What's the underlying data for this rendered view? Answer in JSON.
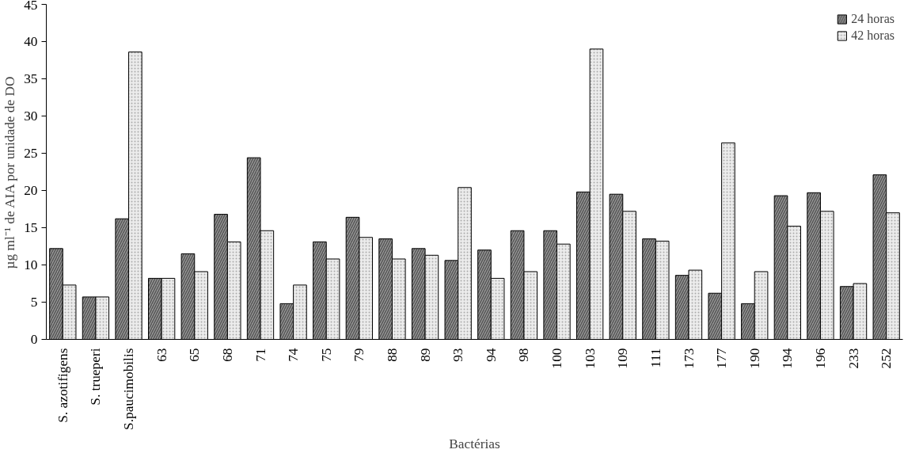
{
  "chart_data": {
    "type": "bar",
    "xlabel": "Bactérias",
    "ylabel": "µg ml⁻¹ de AIA por unidade de DO",
    "categories": [
      "S. azotifigens",
      "S. trueperi",
      "S.paucimobilis",
      "63",
      "65",
      "68",
      "71",
      "74",
      "75",
      "79",
      "88",
      "89",
      "93",
      "94",
      "98",
      "100",
      "103",
      "109",
      "111",
      "173",
      "177",
      "190",
      "194",
      "196",
      "233",
      "252"
    ],
    "series": [
      {
        "name": "24 horas",
        "color": "#9a9a9a",
        "values": [
          12.2,
          5.7,
          16.2,
          8.2,
          11.5,
          16.8,
          24.4,
          4.8,
          13.1,
          16.4,
          13.5,
          12.2,
          10.6,
          12.0,
          14.6,
          14.6,
          19.8,
          19.5,
          13.5,
          8.6,
          6.2,
          4.8,
          19.3,
          19.7,
          7.1,
          22.1
        ]
      },
      {
        "name": "42 horas",
        "color": "#ececec",
        "values": [
          7.3,
          5.7,
          38.6,
          8.2,
          9.1,
          13.1,
          14.6,
          7.3,
          10.8,
          13.7,
          10.8,
          11.3,
          20.4,
          8.2,
          9.1,
          12.8,
          39.0,
          17.2,
          13.2,
          9.3,
          26.4,
          9.1,
          15.2,
          17.2,
          7.5,
          17.0
        ]
      }
    ],
    "ylim": [
      0,
      45
    ],
    "yticks": [
      0,
      5,
      10,
      15,
      20,
      25,
      30,
      35,
      40,
      45
    ],
    "grid": false,
    "legend": "top right"
  }
}
